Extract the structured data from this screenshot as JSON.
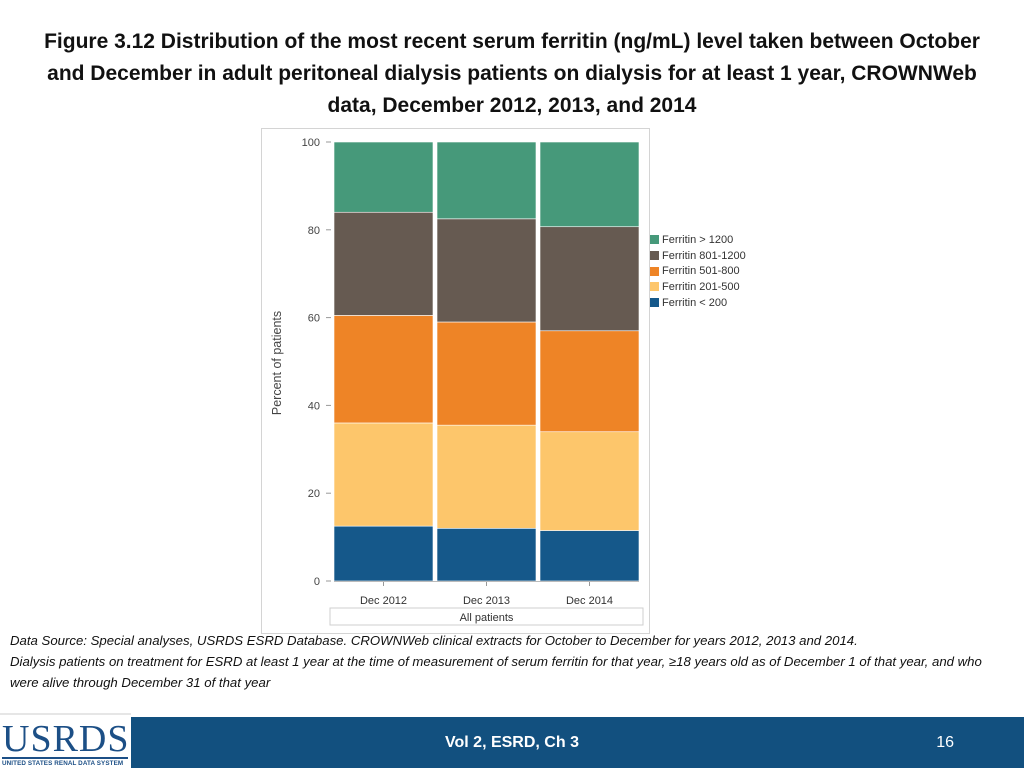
{
  "slide": {
    "title": "Figure 3.12 Distribution of the most recent serum ferritin (ng/mL) level taken between October and December in adult peritoneal dialysis patients on dialysis for at least 1 year, CROWNWeb data, December 2012, 2013, and 2014",
    "note_line1": "Data Source: Special analyses, USRDS ESRD Database. CROWNWeb clinical extracts for October to December for years 2012, 2013 and 2014.",
    "note_line2": "Dialysis patients on treatment for ESRD at least 1 year at the time of measurement of serum ferritin for that year, ≥18 years old as of December 1 of that year, and who were alive through December 31 of that year",
    "footer_center": "Vol 2, ESRD, Ch 3",
    "page_number": "16",
    "logo_text": "USRDS",
    "logo_subtitle": "UNITED STATES RENAL DATA SYSTEM",
    "footer_color": "#12507f"
  },
  "chart_data": {
    "type": "bar",
    "stacked": true,
    "title": "",
    "xlabel": "All patients",
    "ylabel": "Percent of patients",
    "ylim": [
      0,
      100
    ],
    "yticks": [
      0,
      20,
      40,
      60,
      80,
      100
    ],
    "categories": [
      "Dec 2012",
      "Dec 2013",
      "Dec 2014"
    ],
    "series": [
      {
        "name": "Ferritin < 200",
        "color": "#15588a",
        "values": [
          12.5,
          12.0,
          11.5
        ]
      },
      {
        "name": "Ferritin 201-500",
        "color": "#fdc66b",
        "values": [
          23.5,
          23.5,
          22.5
        ]
      },
      {
        "name": "Ferritin 501-800",
        "color": "#ee8426",
        "values": [
          24.5,
          23.5,
          23.0
        ]
      },
      {
        "name": "Ferritin 801-1200",
        "color": "#665a51",
        "values": [
          23.5,
          23.5,
          23.7
        ]
      },
      {
        "name": "Ferritin > 1200",
        "color": "#46997a",
        "values": [
          16.0,
          17.5,
          19.3
        ]
      }
    ],
    "legend_position": "right"
  }
}
